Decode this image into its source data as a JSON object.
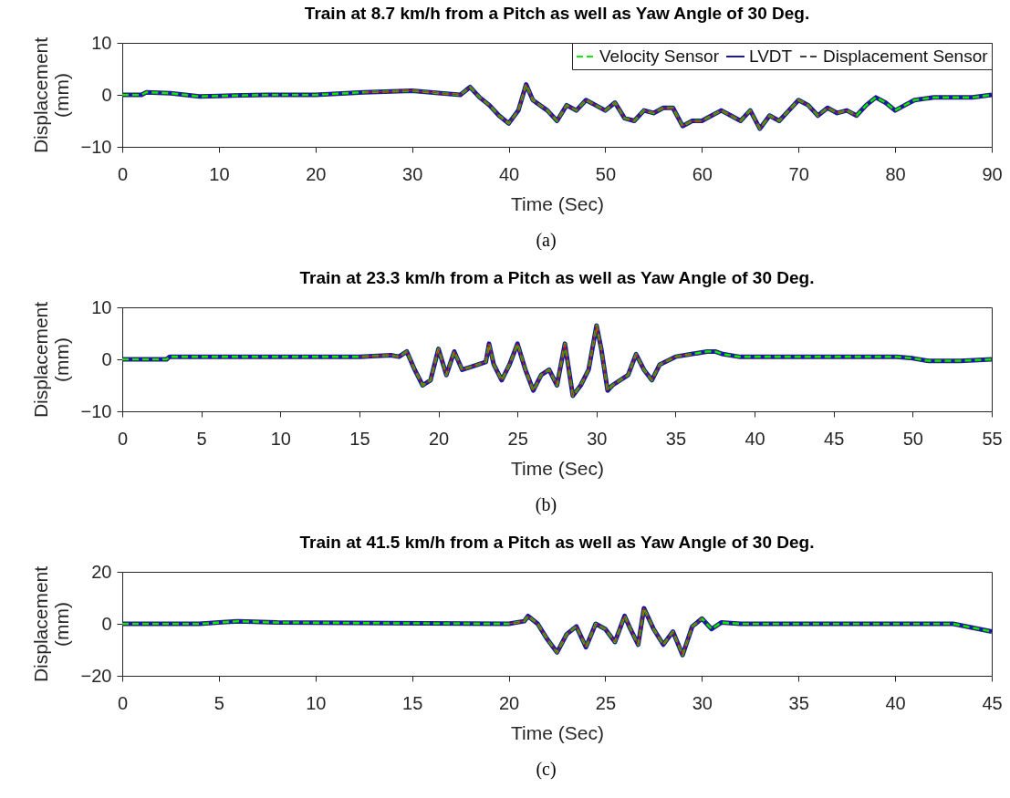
{
  "chart_data": [
    {
      "type": "line",
      "title": "Train at 8.7 km/h from a Pitch as well as Yaw Angle of 30 Deg.",
      "xlabel": "Time (Sec)",
      "ylabel": "Displacement (mm)",
      "annotations": [
        "(a)"
      ],
      "xlim": [
        0,
        90
      ],
      "xticks": [
        0,
        10,
        20,
        30,
        40,
        50,
        60,
        70,
        80,
        90
      ],
      "ylim": [
        -10,
        10
      ],
      "yticks": [
        -10,
        0,
        10
      ],
      "grid": false,
      "legend": "top right",
      "marker": "none",
      "x": [
        0,
        2,
        2.5,
        5,
        8,
        10,
        15,
        20,
        25,
        30,
        33,
        35,
        36,
        37,
        38,
        39,
        40,
        41,
        41.8,
        42.5,
        44,
        45,
        46,
        47,
        48,
        49,
        50,
        51,
        52,
        53,
        54,
        55,
        56,
        57,
        58,
        59,
        60,
        61,
        62,
        63,
        64,
        65,
        66,
        67,
        68,
        69,
        70,
        71,
        72,
        73,
        74,
        75,
        76,
        77,
        78,
        79,
        80,
        81,
        82,
        84,
        88,
        90
      ],
      "series": [
        {
          "name": "Velocity Sensor",
          "color": "#00ee00",
          "line_style": "dashed",
          "values": [
            0,
            0,
            0.5,
            0.3,
            -0.3,
            -0.2,
            0,
            0,
            0.5,
            0.8,
            0.3,
            0,
            1.5,
            -0.5,
            -2,
            -4,
            -5.5,
            -3,
            2,
            -1,
            -3,
            -5,
            -2,
            -3,
            -1,
            -2,
            -3,
            -1.5,
            -4.5,
            -5,
            -3,
            -3.5,
            -2.5,
            -2.5,
            -6,
            -5,
            -5,
            -4,
            -3,
            -4,
            -5,
            -3,
            -6.5,
            -4,
            -5,
            -3,
            -1,
            -2,
            -4,
            -2.5,
            -3.5,
            -3,
            -4,
            -2,
            -0.5,
            -1.5,
            -3,
            -2,
            -1,
            -0.5,
            -0.5,
            0
          ]
        },
        {
          "name": "LVDT",
          "color": "#1a1aa0",
          "line_style": "solid",
          "values": [
            0,
            0,
            0.5,
            0.3,
            -0.3,
            -0.2,
            0,
            0,
            0.5,
            0.8,
            0.3,
            0,
            1.5,
            -0.5,
            -2,
            -4,
            -5.5,
            -3,
            2,
            -1,
            -3,
            -5,
            -2,
            -3,
            -1,
            -2,
            -3,
            -1.5,
            -4.5,
            -5,
            -3,
            -3.5,
            -2.5,
            -2.5,
            -6,
            -5,
            -5,
            -4,
            -3,
            -4,
            -5,
            -3,
            -6.5,
            -4,
            -5,
            -3,
            -1,
            -2,
            -4,
            -2.5,
            -3.5,
            -3,
            -4,
            -2,
            -0.5,
            -1.5,
            -3,
            -2,
            -1,
            -0.5,
            -0.5,
            0
          ]
        },
        {
          "name": "Displacement Sensor",
          "color": "#404040",
          "line_style": "dashed",
          "values": [
            0,
            0,
            0.5,
            0.3,
            -0.3,
            -0.2,
            0,
            0,
            0.5,
            0.8,
            0.3,
            0,
            1.5,
            -0.5,
            -2,
            -4,
            -5.5,
            -3,
            2,
            -1,
            -3,
            -5,
            -2,
            -3,
            -1,
            -2,
            -3,
            -1.5,
            -4.5,
            -5,
            -3,
            -3.5,
            -2.5,
            -2.5,
            -6,
            -5,
            -5,
            -4,
            -3,
            -4,
            -5,
            -3,
            -6.5,
            -4,
            -5,
            -3,
            -1,
            -2,
            -4,
            -2.5,
            -3.5,
            -3,
            -4,
            -2,
            -0.5,
            -1.5,
            -3,
            -2,
            -1,
            -0.5,
            -0.5,
            0
          ]
        },
        {
          "color": "#ee1111",
          "line_style": "solid",
          "values": [
            null,
            null,
            null,
            null,
            null,
            null,
            null,
            null,
            0.5,
            0.8,
            0.3,
            0,
            1.5,
            -0.5,
            -2,
            -4,
            -5.5,
            -3,
            2,
            -1,
            -3,
            -5,
            -2,
            -3,
            -1,
            -2,
            -3,
            -1.5,
            -4.5,
            -5,
            -3,
            -3.5,
            -2.5,
            -2.5,
            -6,
            -5,
            -5,
            -4,
            -3,
            -4,
            -5,
            -3,
            -6.5,
            -4,
            -5,
            -3,
            -1,
            -2,
            -4,
            -2.5,
            -3.5,
            -3,
            -4,
            null,
            null,
            null,
            null,
            null,
            null,
            null,
            null,
            null
          ]
        }
      ]
    },
    {
      "type": "line",
      "title": "Train at 23.3 km/h from a Pitch as well as Yaw Angle of 30 Deg.",
      "xlabel": "Time (Sec)",
      "ylabel": "Displacement (mm)",
      "annotations": [
        "(b)"
      ],
      "xlim": [
        0,
        55
      ],
      "xticks": [
        0,
        5,
        10,
        15,
        20,
        25,
        30,
        35,
        40,
        45,
        50,
        55
      ],
      "ylim": [
        -10,
        10
      ],
      "yticks": [
        -10,
        0,
        10
      ],
      "grid": false,
      "marker": "none",
      "x": [
        0,
        2.8,
        3,
        10,
        15,
        17,
        17.5,
        18,
        18.5,
        19,
        19.5,
        20,
        20.5,
        21,
        21.5,
        22,
        23,
        23.2,
        23.5,
        24,
        24.5,
        25,
        25.5,
        26,
        26.5,
        27,
        27.5,
        28,
        28.5,
        29,
        29.5,
        30,
        30.3,
        30.7,
        31,
        32,
        32.5,
        33,
        33.5,
        34,
        35,
        36,
        37,
        37.5,
        38,
        39,
        45,
        49,
        50,
        51,
        53,
        55
      ],
      "series": [
        {
          "color": "#00ee00",
          "line_style": "dashed",
          "values": [
            0,
            0,
            0.5,
            0.5,
            0.5,
            0.8,
            0.5,
            1.5,
            -2,
            -5,
            -4,
            2,
            -3,
            1.5,
            -2,
            -1.5,
            -0.5,
            3,
            -1,
            -4,
            -1,
            3,
            -2,
            -6,
            -3,
            -2,
            -5,
            3,
            -7,
            -5,
            -2,
            6.5,
            2,
            -6,
            -5,
            -3,
            1,
            -2,
            -4,
            -1,
            0.5,
            1,
            1.5,
            1.5,
            1,
            0.5,
            0.5,
            0.5,
            0.2,
            -0.3,
            -0.3,
            0
          ]
        },
        {
          "color": "#1a1aa0",
          "line_style": "solid",
          "values": [
            0,
            0,
            0.5,
            0.5,
            0.5,
            0.8,
            0.5,
            1.5,
            -2,
            -5,
            -4,
            2,
            -3,
            1.5,
            -2,
            -1.5,
            -0.5,
            3,
            -1,
            -4,
            -1,
            3,
            -2,
            -6,
            -3,
            -2,
            -5,
            3,
            -7,
            -5,
            -2,
            6.5,
            2,
            -6,
            -5,
            -3,
            1,
            -2,
            -4,
            -1,
            0.5,
            1,
            1.5,
            1.5,
            1,
            0.5,
            0.5,
            0.5,
            0.2,
            -0.3,
            -0.3,
            0
          ]
        },
        {
          "color": "#404040",
          "line_style": "dashed",
          "values": [
            0,
            0,
            0.5,
            0.5,
            0.5,
            0.8,
            0.5,
            1.5,
            -2,
            -5,
            -4,
            2,
            -3,
            1.5,
            -2,
            -1.5,
            -0.5,
            3,
            -1,
            -4,
            -1,
            3,
            -2,
            -6,
            -3,
            -2,
            -5,
            3,
            -7,
            -5,
            -2,
            6.5,
            2,
            -6,
            -5,
            -3,
            1,
            -2,
            -4,
            -1,
            0.5,
            1,
            1.5,
            1.5,
            1,
            0.5,
            0.5,
            0.5,
            0.2,
            -0.3,
            -0.3,
            0
          ]
        },
        {
          "color": "#ee1111",
          "line_style": "solid",
          "values": [
            null,
            null,
            null,
            null,
            0.5,
            0.8,
            0.5,
            1.5,
            -2,
            -5,
            -4,
            2,
            -3,
            1.5,
            -2,
            -1.5,
            -0.5,
            3,
            -1,
            -4,
            -1,
            3,
            -2,
            -6,
            -3,
            -2,
            -5,
            3,
            -7,
            -5,
            -2,
            6.5,
            2,
            -6,
            -5,
            -3,
            1,
            -2,
            -4,
            -1,
            0.5,
            1,
            null,
            null,
            null,
            null,
            null,
            null,
            null,
            null,
            null,
            null
          ]
        }
      ]
    },
    {
      "type": "line",
      "title": "Train at 41.5 km/h from a Pitch as well as Yaw Angle of 30 Deg.",
      "xlabel": "Time (Sec)",
      "ylabel": "Displacement (mm)",
      "annotations": [
        "(c)"
      ],
      "xlim": [
        0,
        45
      ],
      "xticks": [
        0,
        5,
        10,
        15,
        20,
        25,
        30,
        35,
        40,
        45
      ],
      "ylim": [
        -20,
        20
      ],
      "yticks": [
        -20,
        0,
        20
      ],
      "grid": false,
      "marker": "none",
      "x": [
        0,
        4,
        5,
        6,
        8,
        20,
        20.8,
        21,
        21.5,
        22,
        22.5,
        23,
        23.5,
        24,
        24.5,
        25,
        25.5,
        26,
        26.3,
        26.7,
        27,
        27.5,
        28,
        28.5,
        29,
        29.5,
        30,
        30.5,
        31,
        32,
        43,
        44,
        45
      ],
      "series": [
        {
          "color": "#00ee00",
          "line_style": "dashed",
          "values": [
            0,
            0,
            0.5,
            1,
            0.5,
            0,
            1,
            3,
            0,
            -6,
            -11,
            -4,
            -1,
            -9,
            0,
            -2,
            -7,
            3,
            -2,
            -8,
            6,
            -2,
            -8,
            -3,
            -12,
            -1,
            2,
            -2,
            0.5,
            0,
            0,
            -1.5,
            -3
          ]
        },
        {
          "color": "#1a1aa0",
          "line_style": "solid",
          "values": [
            0,
            0,
            0.5,
            1,
            0.5,
            0,
            1,
            3,
            0,
            -6,
            -11,
            -4,
            -1,
            -9,
            0,
            -2,
            -7,
            3,
            -2,
            -8,
            6,
            -2,
            -8,
            -3,
            -12,
            -1,
            2,
            -2,
            0.5,
            0,
            0,
            -1.5,
            -3
          ]
        },
        {
          "color": "#404040",
          "line_style": "dashed",
          "values": [
            0,
            0,
            0.5,
            1,
            0.5,
            0,
            1,
            3,
            0,
            -6,
            -11,
            -4,
            -1,
            -9,
            0,
            -2,
            -7,
            3,
            -2,
            -8,
            6,
            -2,
            -8,
            -3,
            -12,
            -1,
            2,
            -2,
            0.5,
            0,
            0,
            -1.5,
            -3
          ]
        },
        {
          "color": "#ee1111",
          "line_style": "solid",
          "values": [
            null,
            null,
            null,
            null,
            null,
            0,
            1,
            3,
            0,
            -6,
            -11,
            -4,
            -1,
            -9,
            0,
            -2,
            -7,
            3,
            -2,
            -8,
            6,
            -2,
            -8,
            -3,
            -12,
            -1,
            2,
            null,
            null,
            null,
            null,
            null,
            null
          ]
        }
      ]
    }
  ]
}
